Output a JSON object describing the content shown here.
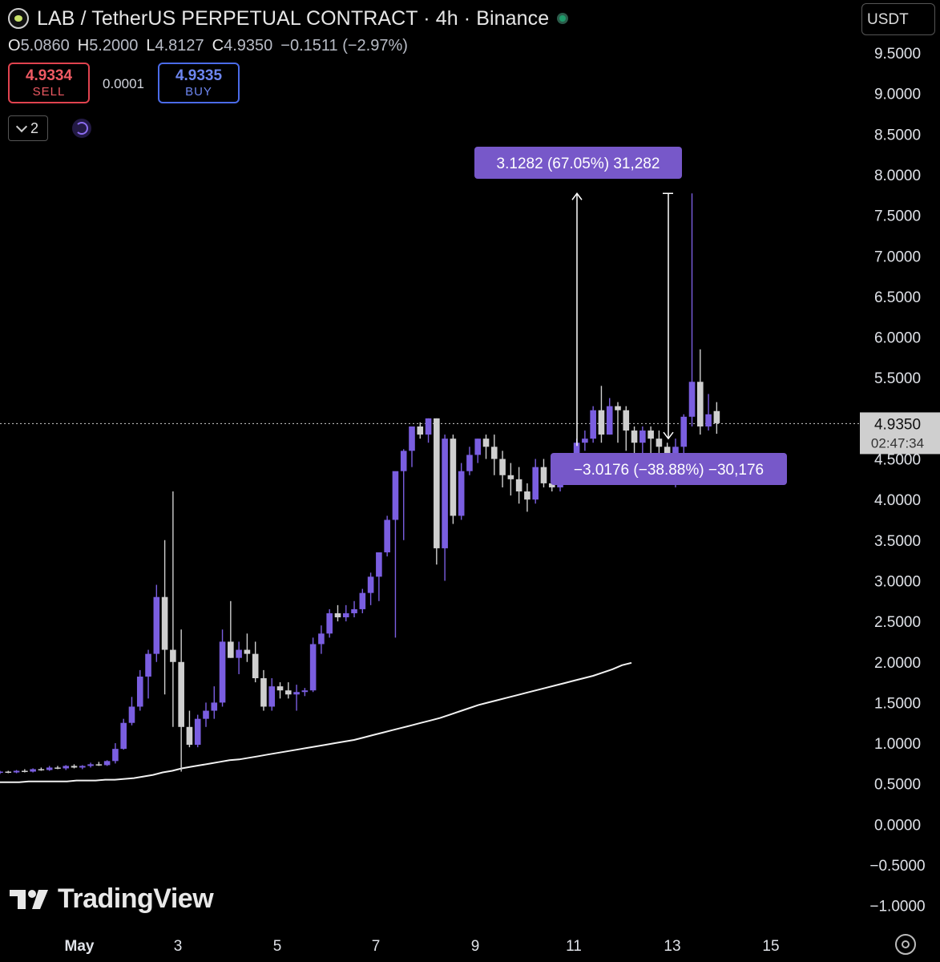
{
  "header": {
    "title": "LAB / TetherUS PERPETUAL CONTRACT · 4h · Binance",
    "status_color": "#1e9b6a"
  },
  "ohlc": {
    "o_label": "O",
    "o": "5.0860",
    "h_label": "H",
    "h": "5.2000",
    "l_label": "L",
    "l": "4.8127",
    "c_label": "C",
    "c": "4.9350",
    "change": "−0.1511 (−2.97%)"
  },
  "trade": {
    "sell_price": "4.9334",
    "sell_label": "SELL",
    "spread": "0.0001",
    "buy_price": "4.9335",
    "buy_label": "BUY"
  },
  "indicator_count": "2",
  "currency": "USDT",
  "watermark": "TradingView",
  "chart_data": {
    "type": "candlestick",
    "title": "LAB / TetherUS PERPETUAL CONTRACT · 4h · Binance",
    "y_ticks": [
      "9.5000",
      "9.0000",
      "8.5000",
      "8.0000",
      "7.5000",
      "7.0000",
      "6.5000",
      "6.0000",
      "5.5000",
      "5.0000",
      "4.5000",
      "4.0000",
      "3.5000",
      "3.0000",
      "2.5000",
      "2.0000",
      "1.5000",
      "1.0000",
      "0.5000",
      "0.0000",
      "−0.5000",
      "−1.0000"
    ],
    "ylim": [
      -1.0,
      9.5
    ],
    "x_ticks": [
      "May",
      "3",
      "5",
      "7",
      "9",
      "11",
      "13",
      "15"
    ],
    "last_price": "4.9350",
    "countdown": "02:47:34",
    "up_color": "#7a5ee0",
    "down_color": "#cfcfcf",
    "candles": [
      [
        0.64,
        0.66,
        0.62,
        0.65
      ],
      [
        0.65,
        0.66,
        0.63,
        0.64
      ],
      [
        0.64,
        0.67,
        0.63,
        0.66
      ],
      [
        0.66,
        0.68,
        0.64,
        0.65
      ],
      [
        0.65,
        0.69,
        0.64,
        0.68
      ],
      [
        0.68,
        0.7,
        0.66,
        0.67
      ],
      [
        0.67,
        0.72,
        0.66,
        0.7
      ],
      [
        0.7,
        0.72,
        0.68,
        0.69
      ],
      [
        0.69,
        0.73,
        0.67,
        0.72
      ],
      [
        0.72,
        0.74,
        0.69,
        0.7
      ],
      [
        0.7,
        0.73,
        0.68,
        0.72
      ],
      [
        0.72,
        0.76,
        0.7,
        0.74
      ],
      [
        0.74,
        0.77,
        0.72,
        0.73
      ],
      [
        0.73,
        0.79,
        0.72,
        0.78
      ],
      [
        0.78,
        1.0,
        0.75,
        0.93
      ],
      [
        0.93,
        1.3,
        0.92,
        1.25
      ],
      [
        1.25,
        1.57,
        1.22,
        1.45
      ],
      [
        1.45,
        1.9,
        1.4,
        1.82
      ],
      [
        1.82,
        2.15,
        1.55,
        2.1
      ],
      [
        2.1,
        2.95,
        2.0,
        2.8
      ],
      [
        2.8,
        3.5,
        1.6,
        2.15
      ],
      [
        2.15,
        4.1,
        1.2,
        2.0
      ],
      [
        2.0,
        2.4,
        0.65,
        1.2
      ],
      [
        1.2,
        1.4,
        0.95,
        0.98
      ],
      [
        0.98,
        1.35,
        0.95,
        1.3
      ],
      [
        1.3,
        1.5,
        1.2,
        1.4
      ],
      [
        1.4,
        1.7,
        1.3,
        1.5
      ],
      [
        1.5,
        2.4,
        1.45,
        2.25
      ],
      [
        2.25,
        2.75,
        2.05,
        2.05
      ],
      [
        2.05,
        2.25,
        1.85,
        2.15
      ],
      [
        2.15,
        2.35,
        2.0,
        2.1
      ],
      [
        2.1,
        2.25,
        1.75,
        1.8
      ],
      [
        1.8,
        1.9,
        1.4,
        1.45
      ],
      [
        1.45,
        1.8,
        1.4,
        1.7
      ],
      [
        1.7,
        1.75,
        1.55,
        1.65
      ],
      [
        1.65,
        1.75,
        1.55,
        1.6
      ],
      [
        1.6,
        1.72,
        1.4,
        1.63
      ],
      [
        1.63,
        1.68,
        1.58,
        1.65
      ],
      [
        1.65,
        2.3,
        1.63,
        2.22
      ],
      [
        2.22,
        2.45,
        2.1,
        2.35
      ],
      [
        2.35,
        2.65,
        2.3,
        2.6
      ],
      [
        2.6,
        2.7,
        2.5,
        2.55
      ],
      [
        2.55,
        2.7,
        2.5,
        2.6
      ],
      [
        2.6,
        2.75,
        2.55,
        2.65
      ],
      [
        2.65,
        2.9,
        2.6,
        2.85
      ],
      [
        2.85,
        3.1,
        2.7,
        3.05
      ],
      [
        3.05,
        3.35,
        2.75,
        3.35
      ],
      [
        3.35,
        3.8,
        3.3,
        3.75
      ],
      [
        3.75,
        4.3,
        2.3,
        4.35
      ],
      [
        4.35,
        4.62,
        3.5,
        4.6
      ],
      [
        4.6,
        4.85,
        4.4,
        4.9
      ],
      [
        4.9,
        4.95,
        4.75,
        4.8
      ],
      [
        4.8,
        5.0,
        4.7,
        5.0
      ],
      [
        5.0,
        5.0,
        3.2,
        3.4
      ],
      [
        3.4,
        4.8,
        3.0,
        4.75
      ],
      [
        4.75,
        4.8,
        3.7,
        3.8
      ],
      [
        3.8,
        4.45,
        3.75,
        4.35
      ],
      [
        4.35,
        4.65,
        4.3,
        4.55
      ],
      [
        4.55,
        4.75,
        4.45,
        4.75
      ],
      [
        4.75,
        4.8,
        4.5,
        4.65
      ],
      [
        4.65,
        4.8,
        4.3,
        4.5
      ],
      [
        4.5,
        4.6,
        4.15,
        4.3
      ],
      [
        4.3,
        4.45,
        4.05,
        4.25
      ],
      [
        4.25,
        4.4,
        3.95,
        4.1
      ],
      [
        4.1,
        4.2,
        3.85,
        4.0
      ],
      [
        4.0,
        4.5,
        3.95,
        4.4
      ],
      [
        4.4,
        4.5,
        4.15,
        4.2
      ],
      [
        4.2,
        4.35,
        4.1,
        4.15
      ],
      [
        4.15,
        4.45,
        4.1,
        4.4
      ],
      [
        4.4,
        4.55,
        4.35,
        4.55
      ],
      [
        4.55,
        4.75,
        4.5,
        4.7
      ],
      [
        4.7,
        4.85,
        4.6,
        4.75
      ],
      [
        4.75,
        5.15,
        4.7,
        5.1
      ],
      [
        5.1,
        5.4,
        4.7,
        4.8
      ],
      [
        4.8,
        5.25,
        4.8,
        5.15
      ],
      [
        5.15,
        5.2,
        4.7,
        5.1
      ],
      [
        5.1,
        5.15,
        4.6,
        4.85
      ],
      [
        4.85,
        4.9,
        4.55,
        4.7
      ],
      [
        4.7,
        4.9,
        4.45,
        4.85
      ],
      [
        4.85,
        4.9,
        4.5,
        4.75
      ],
      [
        4.75,
        4.85,
        4.5,
        4.65
      ],
      [
        4.65,
        4.7,
        4.35,
        4.45
      ],
      [
        4.45,
        4.75,
        4.15,
        4.65
      ],
      [
        4.65,
        5.05,
        4.55,
        5.02
      ],
      [
        5.02,
        7.77,
        4.9,
        5.45
      ],
      [
        5.45,
        5.85,
        4.8,
        4.9
      ],
      [
        4.9,
        5.3,
        4.85,
        5.05
      ],
      [
        5.09,
        5.2,
        4.81,
        4.94
      ]
    ],
    "ma": [
      0.52,
      0.52,
      0.52,
      0.53,
      0.53,
      0.53,
      0.53,
      0.53,
      0.54,
      0.54,
      0.54,
      0.55,
      0.55,
      0.56,
      0.57,
      0.59,
      0.61,
      0.64,
      0.66,
      0.69,
      0.71,
      0.73,
      0.75,
      0.77,
      0.79,
      0.8,
      0.82,
      0.84,
      0.86,
      0.88,
      0.9,
      0.92,
      0.94,
      0.96,
      0.98,
      1.0,
      1.02,
      1.04,
      1.07,
      1.1,
      1.13,
      1.16,
      1.19,
      1.22,
      1.25,
      1.28,
      1.31,
      1.35,
      1.39,
      1.43,
      1.47,
      1.5,
      1.53,
      1.56,
      1.59,
      1.62,
      1.65,
      1.68,
      1.71,
      1.74,
      1.77,
      1.8,
      1.83,
      1.87,
      1.91,
      1.96,
      1.99
    ],
    "measure_up": {
      "label": "3.1282 (67.05%) 31,282",
      "from": 4.66,
      "to": 7.77
    },
    "measure_down": {
      "label": "−3.0176 (−38.88%) −30,176",
      "from": 7.77,
      "to": 4.75
    }
  }
}
